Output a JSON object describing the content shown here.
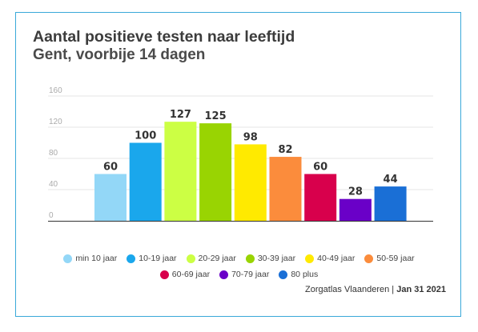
{
  "chart_data": {
    "type": "bar",
    "title": "Aantal positieve testen naar leeftijd",
    "subtitle": "Gent, voorbije 14 dagen",
    "categories": [
      "min 10 jaar",
      "10-19 jaar",
      "20-29 jaar",
      "30-39 jaar",
      "40-49 jaar",
      "50-59 jaar",
      "60-69 jaar",
      "70-79 jaar",
      "80 plus"
    ],
    "values": [
      60,
      100,
      127,
      125,
      98,
      82,
      60,
      28,
      44
    ],
    "colors": [
      "#93d7f7",
      "#1aa7ec",
      "#ccff44",
      "#99d402",
      "#ffea00",
      "#fb8c3c",
      "#d8004c",
      "#6a00c8",
      "#1a6fd6"
    ],
    "ylim": [
      0,
      160
    ],
    "yticks": [
      "0",
      "40",
      "80",
      "120",
      "160"
    ],
    "grid": true,
    "legend": "bottom",
    "xlabel": "",
    "ylabel": ""
  },
  "source": {
    "name": "Zorgatlas Vlaanderen",
    "separator": " | ",
    "date": "Jan 31 2021"
  }
}
